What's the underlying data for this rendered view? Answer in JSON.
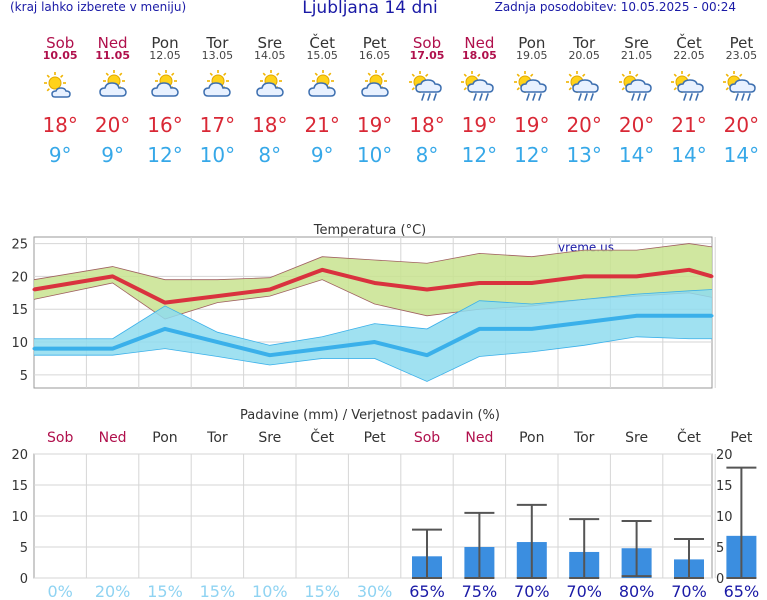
{
  "header": {
    "left_note": "(kraj lahko izberete v meniju)",
    "title": "Ljubljana 14 dni",
    "updated": "Zadnja posodobitev: 10.05.2025 - 00:24"
  },
  "days": [
    {
      "name": "Sob",
      "date": "10.05",
      "weekend": true,
      "icon": "sun-cloud-icon",
      "tmax": "18°",
      "tmin": "9°"
    },
    {
      "name": "Ned",
      "date": "11.05",
      "weekend": true,
      "icon": "cloud-sun-icon",
      "tmax": "20°",
      "tmin": "9°"
    },
    {
      "name": "Pon",
      "date": "12.05",
      "weekend": false,
      "icon": "cloud-sun-icon",
      "tmax": "16°",
      "tmin": "12°"
    },
    {
      "name": "Tor",
      "date": "13.05",
      "weekend": false,
      "icon": "cloud-sun-icon",
      "tmax": "17°",
      "tmin": "10°"
    },
    {
      "name": "Sre",
      "date": "14.05",
      "weekend": false,
      "icon": "cloud-sun-icon",
      "tmax": "18°",
      "tmin": "8°"
    },
    {
      "name": "Čet",
      "date": "15.05",
      "weekend": false,
      "icon": "cloud-sun-icon",
      "tmax": "21°",
      "tmin": "9°"
    },
    {
      "name": "Pet",
      "date": "16.05",
      "weekend": false,
      "icon": "cloud-sun-icon",
      "tmax": "19°",
      "tmin": "10°"
    },
    {
      "name": "Sob",
      "date": "17.05",
      "weekend": true,
      "icon": "sun-rain-icon",
      "tmax": "18°",
      "tmin": "8°"
    },
    {
      "name": "Ned",
      "date": "18.05",
      "weekend": true,
      "icon": "sun-rain-icon",
      "tmax": "19°",
      "tmin": "12°"
    },
    {
      "name": "Pon",
      "date": "19.05",
      "weekend": false,
      "icon": "sun-rain-icon",
      "tmax": "19°",
      "tmin": "12°"
    },
    {
      "name": "Tor",
      "date": "20.05",
      "weekend": false,
      "icon": "sun-rain-icon",
      "tmax": "20°",
      "tmin": "13°"
    },
    {
      "name": "Sre",
      "date": "21.05",
      "weekend": false,
      "icon": "sun-rain-icon",
      "tmax": "20°",
      "tmin": "14°"
    },
    {
      "name": "Čet",
      "date": "22.05",
      "weekend": false,
      "icon": "sun-rain-icon",
      "tmax": "21°",
      "tmin": "14°"
    },
    {
      "name": "Pet",
      "date": "23.05",
      "weekend": false,
      "icon": "sun-rain-icon",
      "tmax": "20°",
      "tmin": "14°"
    }
  ],
  "colors": {
    "max_line": "#d9323e",
    "min_line": "#3ab0ea",
    "max_band": "#c8e38f",
    "min_band": "#8fdcef",
    "bar": "#3b8ee0",
    "weekend_text": "#b0104c",
    "prob_low": "#8fd3f2",
    "prob_high": "#1a1aa6"
  },
  "chart_data": [
    {
      "type": "line",
      "title": "Temperatura (°C)",
      "watermark": "vreme.us",
      "ylim": [
        3,
        26
      ],
      "yticks": [
        5,
        10,
        15,
        20,
        25
      ],
      "grid": true,
      "series": [
        {
          "name": "max",
          "values": [
            18,
            20,
            16,
            17,
            18,
            21,
            19,
            18,
            19,
            19,
            20,
            20,
            21,
            20
          ],
          "band_low": [
            16.5,
            19,
            13.5,
            16,
            17,
            19.5,
            15.8,
            14,
            15,
            15.5,
            16.5,
            17,
            17.5,
            16.8
          ],
          "band_high": [
            19.5,
            21.5,
            19.5,
            19.5,
            19.8,
            23,
            22.5,
            22,
            23.5,
            23,
            24,
            24,
            25,
            24.5
          ]
        },
        {
          "name": "min",
          "values": [
            9,
            9,
            12,
            10,
            8,
            9,
            10,
            8,
            12,
            12,
            13,
            14,
            14,
            14
          ],
          "band_low": [
            8,
            8,
            9,
            7.8,
            6.5,
            7.5,
            7.5,
            4,
            7.8,
            8.5,
            9.5,
            10.8,
            10.5,
            10.5
          ],
          "band_high": [
            10.5,
            10.5,
            15.5,
            11.5,
            9.5,
            10.8,
            12.8,
            12,
            16.3,
            15.8,
            16.5,
            17.3,
            17.8,
            18
          ]
        }
      ]
    },
    {
      "type": "bar",
      "title": "Padavine (mm) / Verjetnost padavin (%)",
      "categories": [
        "Sob",
        "Ned",
        "Pon",
        "Tor",
        "Sre",
        "Čet",
        "Pet",
        "Sob",
        "Ned",
        "Pon",
        "Tor",
        "Sre",
        "Čet",
        "Pet"
      ],
      "values": [
        0,
        0,
        0,
        0,
        0,
        0,
        0,
        3.5,
        5,
        5.8,
        4.2,
        4.8,
        3,
        6.8
      ],
      "error_high": [
        0,
        0,
        0,
        0,
        0,
        0,
        0,
        7.8,
        10.5,
        11.8,
        9.5,
        9.2,
        6.3,
        17.8
      ],
      "error_low": [
        0,
        0,
        0,
        0,
        0,
        0,
        0,
        0,
        0,
        0,
        0,
        0.3,
        0,
        0
      ],
      "probability": [
        "0%",
        "20%",
        "15%",
        "15%",
        "10%",
        "15%",
        "30%",
        "65%",
        "75%",
        "70%",
        "70%",
        "80%",
        "70%",
        "65%"
      ],
      "ylim": [
        0,
        20
      ],
      "yticks": [
        0,
        5,
        10,
        15,
        20
      ],
      "grid": true
    }
  ]
}
